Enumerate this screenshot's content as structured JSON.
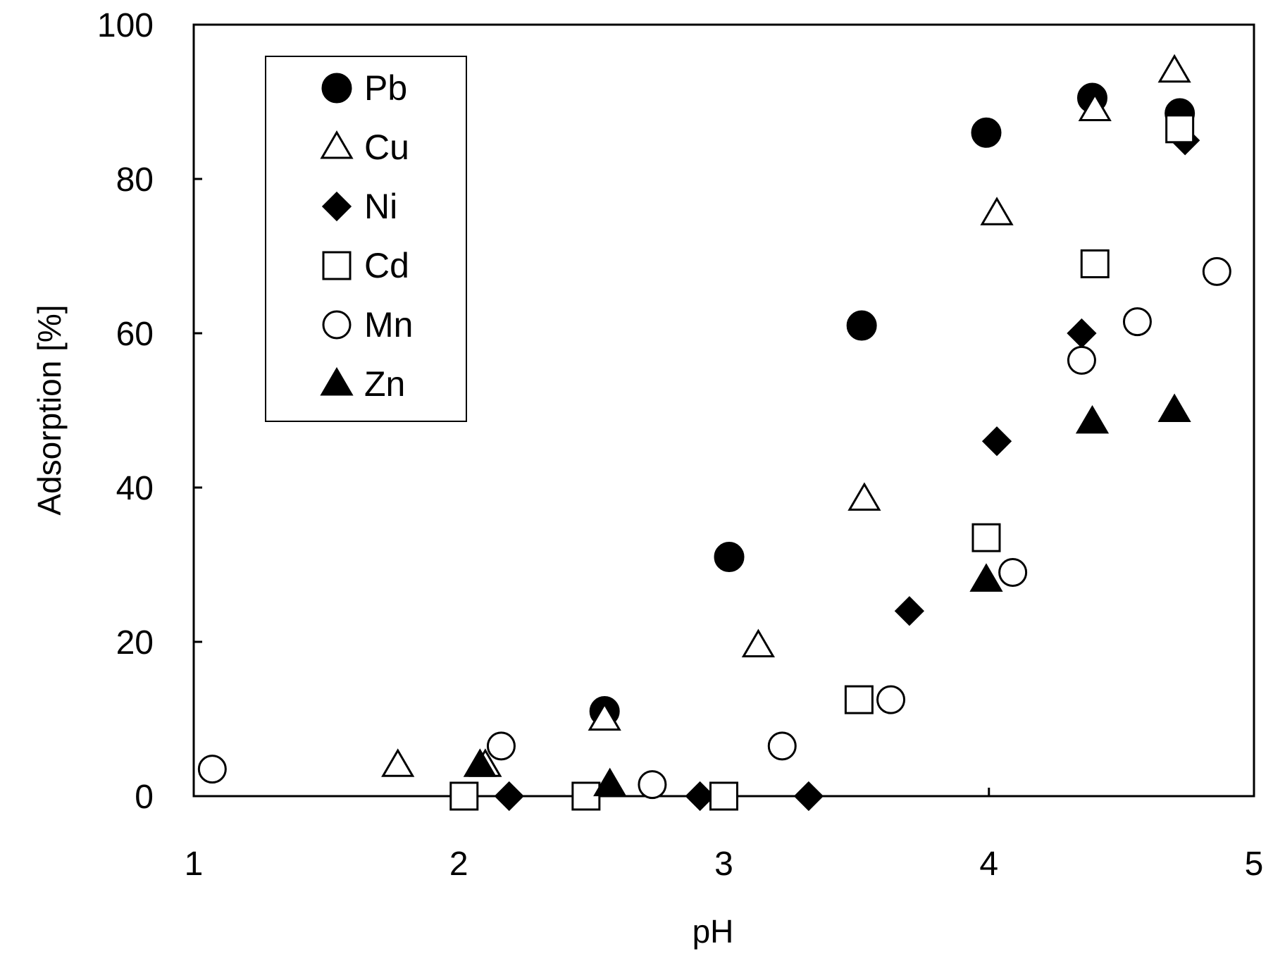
{
  "chart_data": {
    "type": "scatter",
    "title": "",
    "xlabel": "pH",
    "ylabel": "Adsorption [%]",
    "xlim": [
      1,
      5
    ],
    "ylim": [
      0,
      100
    ],
    "xticks": [
      1,
      2,
      3,
      4,
      5
    ],
    "yticks": [
      0,
      20,
      40,
      60,
      80,
      100
    ],
    "grid": false,
    "legend_position": "top-left",
    "series": [
      {
        "name": "Pb",
        "marker": "filled-circle",
        "points": [
          [
            2.55,
            11
          ],
          [
            3.02,
            31
          ],
          [
            3.52,
            61
          ],
          [
            3.99,
            86
          ],
          [
            4.39,
            90.5
          ],
          [
            4.72,
            88.5
          ]
        ]
      },
      {
        "name": "Cu",
        "marker": "open-triangle",
        "points": [
          [
            1.77,
            4
          ],
          [
            2.1,
            4
          ],
          [
            2.55,
            10
          ],
          [
            3.13,
            19.5
          ],
          [
            3.53,
            38.5
          ],
          [
            4.03,
            75.5
          ],
          [
            4.4,
            89
          ],
          [
            4.7,
            94
          ]
        ]
      },
      {
        "name": "Ni",
        "marker": "filled-diamond",
        "points": [
          [
            2.19,
            0
          ],
          [
            2.91,
            0
          ],
          [
            3.32,
            0
          ],
          [
            3.7,
            24
          ],
          [
            4.03,
            46
          ],
          [
            4.35,
            60
          ],
          [
            4.74,
            85
          ]
        ]
      },
      {
        "name": "Cd",
        "marker": "open-square",
        "points": [
          [
            2.02,
            0
          ],
          [
            2.48,
            0
          ],
          [
            3.0,
            0
          ],
          [
            3.51,
            12.5
          ],
          [
            3.99,
            33.5
          ],
          [
            4.4,
            69
          ],
          [
            4.72,
            86.5
          ]
        ]
      },
      {
        "name": "Mn",
        "marker": "open-circle",
        "points": [
          [
            1.07,
            3.5
          ],
          [
            2.16,
            6.5
          ],
          [
            2.73,
            1.5
          ],
          [
            3.22,
            6.5
          ],
          [
            3.63,
            12.5
          ],
          [
            4.09,
            29
          ],
          [
            4.35,
            56.5
          ],
          [
            4.56,
            61.5
          ],
          [
            4.86,
            68
          ]
        ]
      },
      {
        "name": "Zn",
        "marker": "filled-triangle",
        "points": [
          [
            2.08,
            4
          ],
          [
            2.57,
            1.5
          ],
          [
            3.99,
            28
          ],
          [
            4.39,
            48.5
          ],
          [
            4.7,
            50
          ]
        ]
      }
    ]
  }
}
